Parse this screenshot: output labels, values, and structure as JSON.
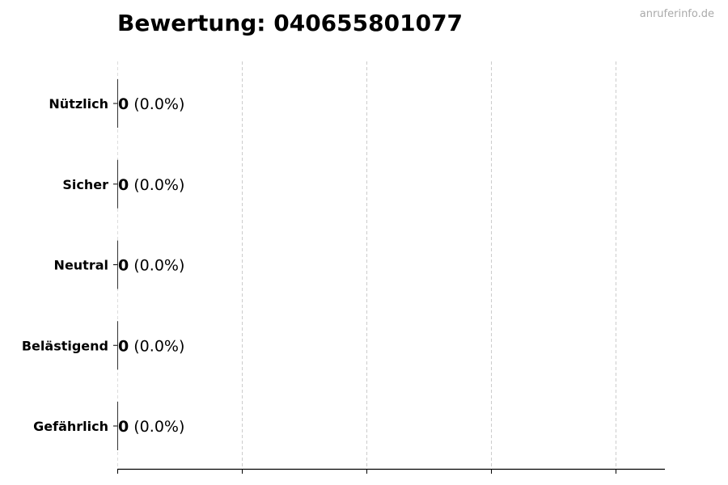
{
  "title": "Bewertung: 040655801077",
  "watermark": "anruferinfo.de",
  "chart_data": {
    "type": "bar",
    "orientation": "horizontal",
    "title": "Bewertung: 040655801077",
    "categories": [
      "Nützlich",
      "Sicher",
      "Neutral",
      "Belästigend",
      "Gefährlich"
    ],
    "values": [
      0,
      0,
      0,
      0,
      0
    ],
    "percent_labels": [
      "(0.0%)",
      "(0.0%)",
      "(0.0%)",
      "(0.0%)",
      "(0.0%)"
    ],
    "x_ticks_count": 5,
    "x_tick_labels_shown": false,
    "grid": "x dashed",
    "xlabel": "",
    "ylabel": ""
  }
}
